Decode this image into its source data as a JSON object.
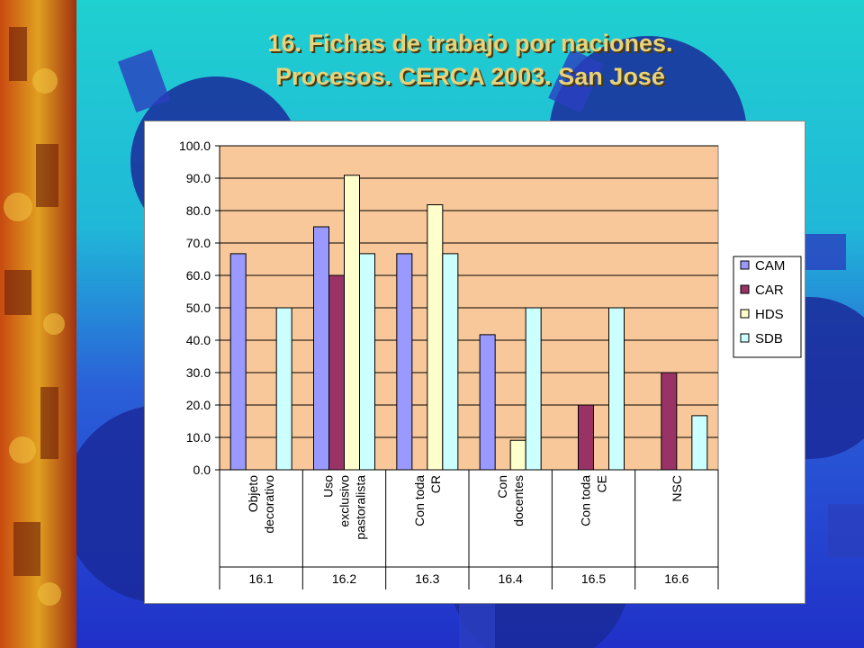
{
  "title_line1": "16. Fichas de trabajo por naciones.",
  "title_line2": "Procesos. CERCA 2003. San José",
  "colors": {
    "plot_bg": "#f8c89a",
    "CAM": "#9999ff",
    "CAR": "#993366",
    "HDS": "#ffffcc",
    "SDB": "#ccffff"
  },
  "chart_data": {
    "type": "bar",
    "title": "",
    "xlabel": "",
    "ylabel": "",
    "ylim": [
      0,
      100
    ],
    "yticks": [
      "0.0",
      "10.0",
      "20.0",
      "30.0",
      "40.0",
      "50.0",
      "60.0",
      "70.0",
      "80.0",
      "90.0",
      "100.0"
    ],
    "grid": true,
    "legend": "right",
    "groups": [
      {
        "label_lines": [
          "Objeto",
          "decorativo"
        ],
        "id": "16.1"
      },
      {
        "label_lines": [
          "Uso",
          "exclusivo",
          "pastoralista"
        ],
        "id": "16.2"
      },
      {
        "label_lines": [
          "Con toda",
          "CR"
        ],
        "id": "16.3"
      },
      {
        "label_lines": [
          "Con",
          "docentes"
        ],
        "id": "16.4"
      },
      {
        "label_lines": [
          "Con toda",
          "CE"
        ],
        "id": "16.5"
      },
      {
        "label_lines": [
          "NSC"
        ],
        "id": "16.6"
      }
    ],
    "series": [
      {
        "name": "CAM",
        "values": [
          66.7,
          75.0,
          66.7,
          41.7,
          null,
          null
        ]
      },
      {
        "name": "CAR",
        "values": [
          null,
          60.0,
          null,
          null,
          20.0,
          30.0
        ]
      },
      {
        "name": "HDS",
        "values": [
          null,
          90.9,
          81.8,
          9.1,
          null,
          null
        ]
      },
      {
        "name": "SDB",
        "values": [
          50.0,
          66.7,
          66.7,
          50.0,
          50.0,
          16.7
        ]
      }
    ]
  }
}
